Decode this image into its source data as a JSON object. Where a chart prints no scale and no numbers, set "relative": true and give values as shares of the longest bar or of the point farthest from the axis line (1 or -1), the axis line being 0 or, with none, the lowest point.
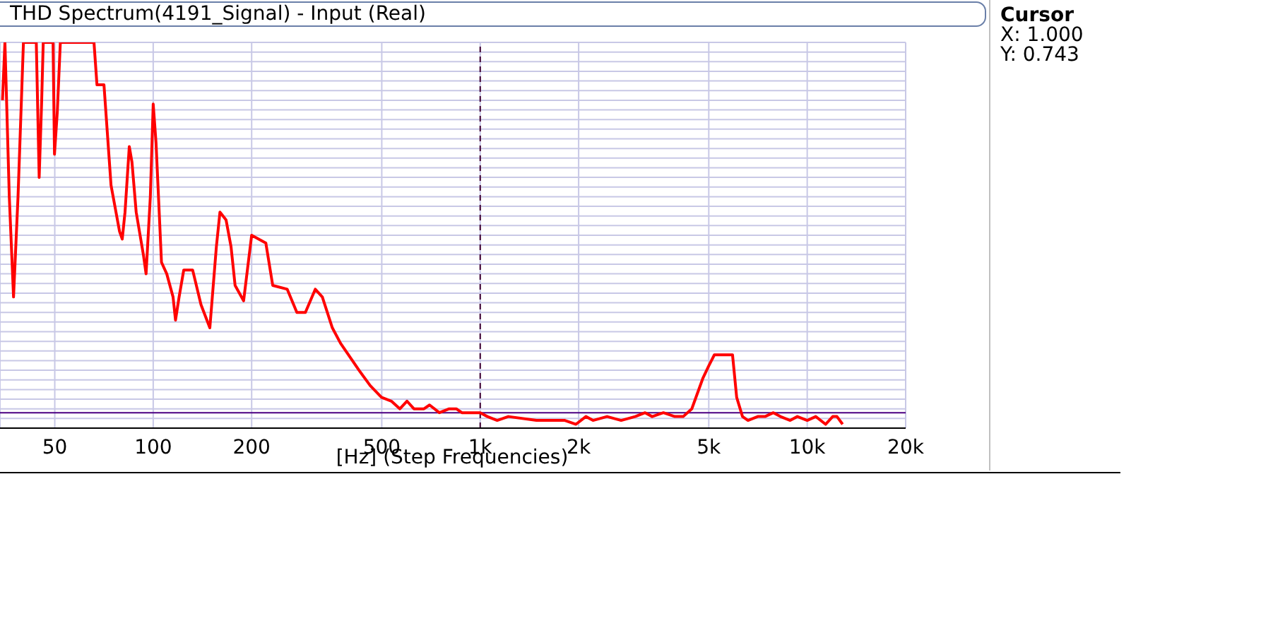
{
  "chart_data": {
    "type": "line",
    "title": "THD Spectrum(4191_Signal) - Input (Real)",
    "xlabel": "[Hz] (Step Frequencies)",
    "relative": true,
    "log": "x",
    "grid": true,
    "marker": "none",
    "line_style": "solid",
    "xlim": [
      34,
      20000
    ],
    "xticks": [
      50,
      100,
      200,
      500,
      {
        "value": 1000,
        "label": "1k"
      },
      {
        "value": 2000,
        "label": "2k"
      },
      {
        "value": 5000,
        "label": "5k"
      },
      {
        "value": 10000,
        "label": "10k"
      },
      {
        "value": 20000,
        "label": "20k"
      }
    ],
    "x": [
      34.6,
      35.2,
      36.3,
      37.4,
      38.6,
      40.1,
      43.9,
      44.8,
      45.6,
      46.1,
      49.4,
      49.9,
      50.9,
      52.0,
      65.9,
      67.3,
      70.7,
      74.3,
      78.9,
      80.4,
      82.0,
      84.5,
      86.1,
      88.7,
      93.3,
      95.1,
      98.0,
      100,
      102,
      106,
      110,
      115,
      117,
      120,
      124,
      132,
      140,
      149,
      156,
      160,
      167,
      173,
      178,
      189,
      200,
      221,
      232,
      257,
      275,
      292,
      313,
      329,
      353,
      374,
      426,
      461,
      499,
      535,
      568,
      597,
      627,
      673,
      700,
      750,
      804,
      845,
      879,
      951,
      1000,
      1052,
      1127,
      1219,
      1486,
      1815,
      1963,
      2105,
      2213,
      2443,
      2698,
      2979,
      3193,
      3357,
      3633,
      3936,
      4176,
      4436,
      4800,
      4990,
      5200,
      5740,
      5910,
      6085,
      6340,
      6590,
      7060,
      7430,
      7880,
      8280,
      8870,
      9330,
      10000,
      10620,
      11380,
      11970,
      12330,
      12830
    ],
    "series": [
      {
        "color": "#ff0000",
        "values": [
          0.85,
          1,
          0.6,
          0.34,
          0.6,
          1,
          1,
          0.65,
          0.85,
          1,
          1,
          0.71,
          0.82,
          1,
          1,
          0.89,
          0.89,
          0.63,
          0.51,
          0.49,
          0.56,
          0.73,
          0.69,
          0.56,
          0.45,
          0.4,
          0.6,
          0.84,
          0.74,
          0.43,
          0.4,
          0.34,
          0.28,
          0.34,
          0.41,
          0.41,
          0.32,
          0.26,
          0.47,
          0.56,
          0.54,
          0.47,
          0.37,
          0.33,
          0.5,
          0.48,
          0.37,
          0.36,
          0.3,
          0.3,
          0.36,
          0.34,
          0.26,
          0.22,
          0.15,
          0.11,
          0.08,
          0.07,
          0.05,
          0.07,
          0.05,
          0.05,
          0.06,
          0.04,
          0.05,
          0.05,
          0.04,
          0.04,
          0.04,
          0.03,
          0.02,
          0.03,
          0.02,
          0.02,
          0.01,
          0.03,
          0.02,
          0.03,
          0.02,
          0.03,
          0.04,
          0.03,
          0.04,
          0.03,
          0.03,
          0.05,
          0.13,
          0.16,
          0.19,
          0.19,
          0.19,
          0.08,
          0.03,
          0.02,
          0.03,
          0.03,
          0.04,
          0.03,
          0.02,
          0.03,
          0.02,
          0.03,
          0.01,
          0.03,
          0.03,
          0.01
        ]
      }
    ],
    "ref_lines": [
      {
        "axis": "x",
        "value": 1000,
        "color": "#400030",
        "line_style": "dashed"
      },
      {
        "axis": "y",
        "value": 0.04,
        "color": "#4b0082"
      }
    ],
    "annotations": [
      "Cursor",
      "X: 1.000",
      "Y: 0.743"
    ]
  }
}
